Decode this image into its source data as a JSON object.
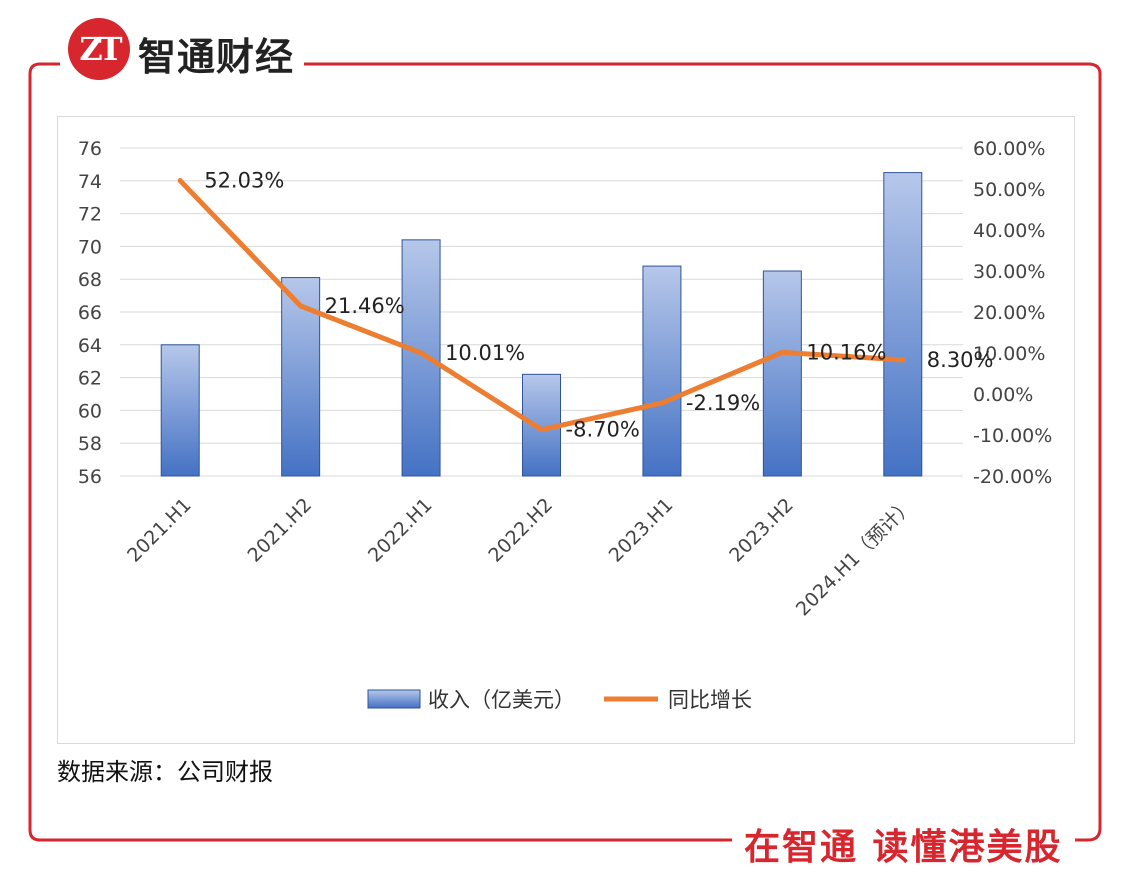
{
  "brand": {
    "logo_text": "ZT",
    "name": "智通财经"
  },
  "slogan": "在智通 读懂港美股",
  "source": "数据来源：公司财报",
  "colors": {
    "frame": "#d7262e",
    "bar_top": "#b6c7ea",
    "bar_bottom": "#4472c4",
    "bar_edge": "#2f5597",
    "line": "#ed7d31",
    "grid": "#d9d9d9"
  },
  "chart_data": {
    "type": "bar+line",
    "categories": [
      "2021.H1",
      "2021.H2",
      "2022.H1",
      "2022.H2",
      "2023.H1",
      "2023.H2",
      "2024.H1（预计）"
    ],
    "series": [
      {
        "name": "收入（亿美元）",
        "type": "bar",
        "axis": "left",
        "values": [
          64.0,
          68.1,
          70.4,
          62.2,
          68.8,
          68.5,
          74.5
        ]
      },
      {
        "name": "同比增长",
        "type": "line",
        "axis": "right",
        "values": [
          52.03,
          21.46,
          10.01,
          -8.7,
          -2.19,
          10.16,
          8.3
        ],
        "labels": [
          "52.03%",
          "21.46%",
          "10.01%",
          "-8.70%",
          "-2.19%",
          "10.16%",
          "8.30%"
        ]
      }
    ],
    "y_left": {
      "min": 56,
      "max": 76,
      "step": 2,
      "ticks": [
        "56",
        "58",
        "60",
        "62",
        "64",
        "66",
        "68",
        "70",
        "72",
        "74",
        "76"
      ]
    },
    "y_right": {
      "min": -20,
      "max": 60,
      "step": 10,
      "ticks": [
        "-20.00%",
        "-10.00%",
        "0.00%",
        "10.00%",
        "20.00%",
        "30.00%",
        "40.00%",
        "50.00%",
        "60.00%"
      ]
    },
    "grid": true,
    "legend_position": "bottom"
  }
}
